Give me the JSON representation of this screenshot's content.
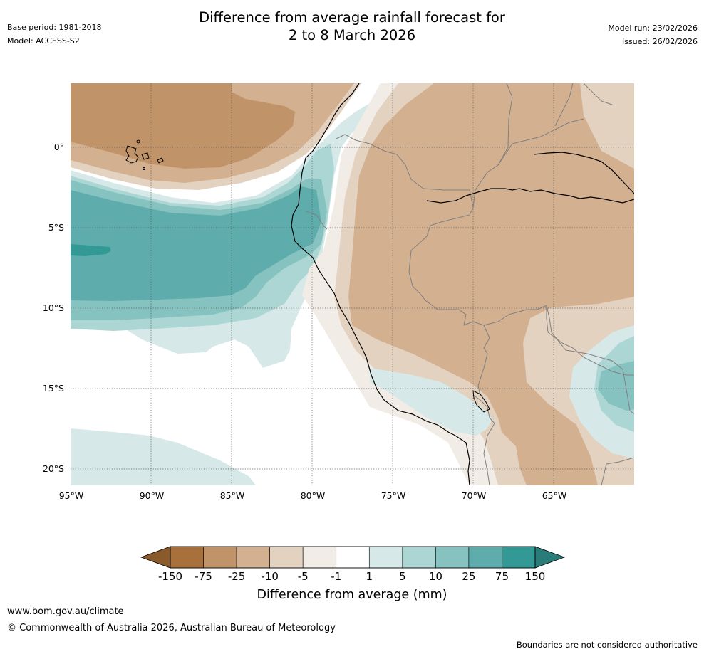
{
  "header": {
    "title_line1": "Difference from average rainfall forecast for",
    "title_line2": "2 to 8 March 2026",
    "base_period": "Base period: 1981-2018",
    "model": "Model: ACCESS-S2",
    "model_run": "Model run: 23/02/2026",
    "issued": "Issued: 26/02/2026"
  },
  "map": {
    "lat_labels": [
      "0°",
      "5°S",
      "10°S",
      "15°S",
      "20°S"
    ],
    "lon_labels": [
      "95°W",
      "90°W",
      "85°W",
      "80°W",
      "75°W",
      "70°W",
      "65°W"
    ],
    "colors": {
      "c_neg150": "#a8703a",
      "c_neg75": "#c09468",
      "c_neg25": "#d3b090",
      "c_neg10": "#e4d2c0",
      "c_neg5": "#f1ece6",
      "c_zero": "#ffffff",
      "c_pos1": "#d6e9e8",
      "c_pos5": "#abd6d4",
      "c_pos10": "#86c2c0",
      "c_pos25": "#5eadac",
      "c_pos75": "#329995",
      "c_pos150": "#21807d",
      "coast": "#000000",
      "border": "#808080"
    }
  },
  "colorbar": {
    "ticks": [
      "-150",
      "-75",
      "-25",
      "-10",
      "-5",
      "-1",
      "1",
      "5",
      "10",
      "25",
      "75",
      "150"
    ],
    "colors": [
      "#a8703a",
      "#c09468",
      "#d3b090",
      "#e4d2c0",
      "#f1ece6",
      "#ffffff",
      "#d6e9e8",
      "#abd6d4",
      "#86c2c0",
      "#5eadac",
      "#329995"
    ],
    "ext_low_color": "#8b5a2b",
    "ext_high_color": "#2a7c79",
    "title": "Difference from average (mm)"
  },
  "footer": {
    "website": "www.bom.gov.au/climate",
    "copyright": "© Commonwealth of Australia 2026, Australian Bureau of Meteorology",
    "disclaimer": "Boundaries are not considered authoritative"
  }
}
